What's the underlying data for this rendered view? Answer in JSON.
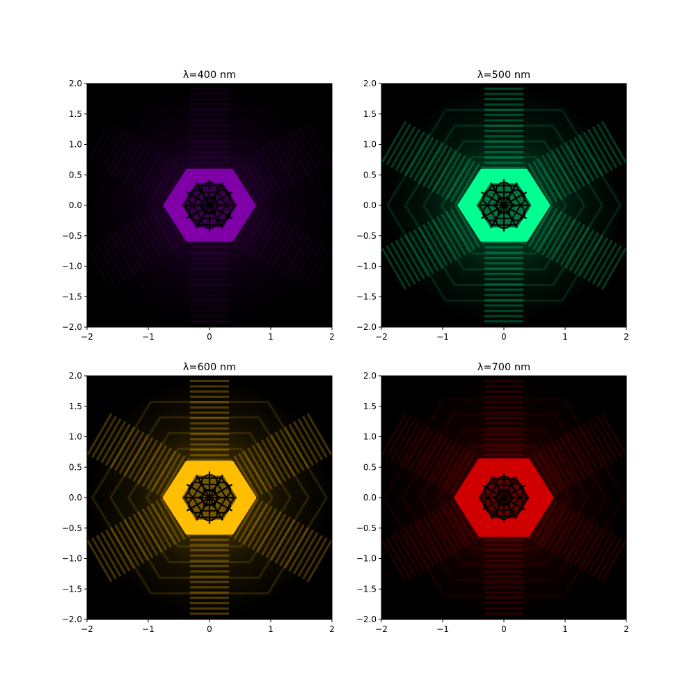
{
  "chart_data": [
    {
      "type": "heatmap",
      "title": "λ=400 nm",
      "color": "#7f00a6",
      "xlim": [
        -2,
        2
      ],
      "ylim": [
        -2,
        2
      ],
      "xticks": [
        "−2",
        "−1",
        "0",
        "1",
        "2"
      ],
      "yticks": [
        "2.0",
        "1.5",
        "1.0",
        "0.5",
        "0.0",
        "−0.5",
        "−1.0",
        "−1.5",
        "−2.0"
      ],
      "xtick_values": [
        -2,
        -1,
        0,
        1,
        2
      ],
      "ytick_values": [
        2.0,
        1.5,
        1.0,
        0.5,
        0.0,
        -0.5,
        -1.0,
        -1.5,
        -2.0
      ],
      "hexagon_half_width": 0.72,
      "central_pattern_radius": 0.45,
      "fringe_strength": 0.1,
      "grid": false
    },
    {
      "type": "heatmap",
      "title": "λ=500 nm",
      "color": "#00ff90",
      "xlim": [
        -2,
        2
      ],
      "ylim": [
        -2,
        2
      ],
      "xticks": [
        "−2",
        "−1",
        "0",
        "1",
        "2"
      ],
      "yticks": [
        "2.0",
        "1.5",
        "1.0",
        "0.5",
        "0.0",
        "−0.5",
        "−1.0",
        "−1.5",
        "−2.0"
      ],
      "xtick_values": [
        -2,
        -1,
        0,
        1,
        2
      ],
      "ytick_values": [
        2.0,
        1.5,
        1.0,
        0.5,
        0.0,
        -0.5,
        -1.0,
        -1.5,
        -2.0
      ],
      "hexagon_half_width": 0.72,
      "central_pattern_radius": 0.45,
      "fringe_strength": 0.25,
      "grid": false
    },
    {
      "type": "heatmap",
      "title": "λ=600 nm",
      "color": "#ffbe00",
      "xlim": [
        -2,
        2
      ],
      "ylim": [
        -2,
        2
      ],
      "xticks": [
        "−2",
        "−1",
        "0",
        "1",
        "2"
      ],
      "yticks": [
        "2.0",
        "1.5",
        "1.0",
        "0.5",
        "0.0",
        "−0.5",
        "−1.0",
        "−1.5",
        "−2.0"
      ],
      "xtick_values": [
        -2,
        -1,
        0,
        1,
        2
      ],
      "ytick_values": [
        2.0,
        1.5,
        1.0,
        0.5,
        0.0,
        -0.5,
        -1.0,
        -1.5,
        -2.0
      ],
      "hexagon_half_width": 0.73,
      "central_pattern_radius": 0.45,
      "fringe_strength": 0.28,
      "grid": false
    },
    {
      "type": "heatmap",
      "title": "λ=700 nm",
      "color": "#d00000",
      "xlim": [
        -2,
        2
      ],
      "ylim": [
        -2,
        2
      ],
      "xticks": [
        "−2",
        "−1",
        "0",
        "1",
        "2"
      ],
      "yticks": [
        "2.0",
        "1.5",
        "1.0",
        "0.5",
        "0.0",
        "−0.5",
        "−1.0",
        "−1.5",
        "−2.0"
      ],
      "xtick_values": [
        -2,
        -1,
        0,
        1,
        2
      ],
      "ytick_values": [
        2.0,
        1.5,
        1.0,
        0.5,
        0.0,
        -0.5,
        -1.0,
        -1.5,
        -2.0
      ],
      "hexagon_half_width": 0.78,
      "central_pattern_radius": 0.42,
      "fringe_strength": 0.18,
      "grid": false
    }
  ]
}
